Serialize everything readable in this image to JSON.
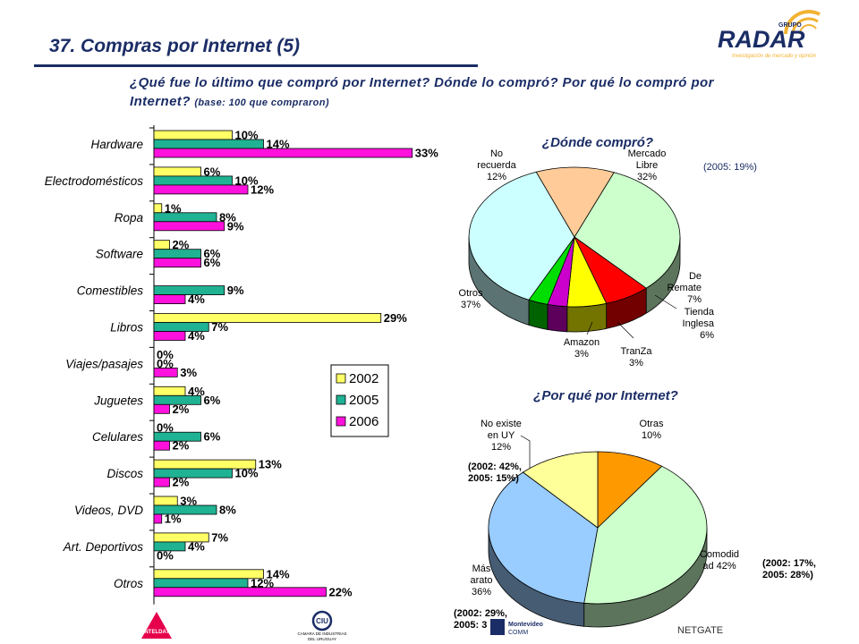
{
  "header": {
    "title": "37. Compras por Internet (5)",
    "question": "¿Qué fue lo último que compró por Internet? Dónde lo compró? Por qué lo compró por Internet?",
    "base": "(base: 100 que compraron)"
  },
  "logos": {
    "radar_group": "GRUPO",
    "radar_name": "RADAR",
    "radar_tagline": "Investigación de mercado y opinión",
    "antel": "ANTELDATA",
    "ciu": "CIU",
    "ciu_sub1": "CAMARA DE INDUSTRIAS",
    "ciu_sub2": "DEL URUGUAY",
    "montevideo1": "Montevideo",
    "montevideo2": "COMM",
    "netgate": "NETGATE"
  },
  "colors": {
    "s2002": "#ffff66",
    "s2005": "#1fb293",
    "s2006": "#ff11dd",
    "title": "#1b2d66"
  },
  "chart_data": [
    {
      "type": "bar",
      "orientation": "horizontal",
      "categories": [
        "Hardware",
        "Electrodomésticos",
        "Ropa",
        "Software",
        "Comestibles",
        "Libros",
        "Viajes/pasajes",
        "Juguetes",
        "Celulares",
        "Discos",
        "Videos, DVD",
        "Art. Deportivos",
        "Otros"
      ],
      "series": [
        {
          "name": "2002",
          "values": [
            10,
            6,
            1,
            2,
            null,
            29,
            0,
            4,
            0,
            13,
            3,
            7,
            14
          ]
        },
        {
          "name": "2005",
          "values": [
            14,
            10,
            8,
            6,
            9,
            7,
            0,
            6,
            6,
            10,
            8,
            4,
            12
          ]
        },
        {
          "name": "2006",
          "values": [
            33,
            12,
            9,
            6,
            4,
            4,
            3,
            2,
            2,
            2,
            1,
            0,
            22
          ]
        }
      ],
      "legend_position": "right"
    },
    {
      "type": "pie",
      "title": "¿Dónde compró?",
      "slices": [
        {
          "label": "Mercado Libre",
          "value": 32,
          "text": "32%",
          "color": "#ccffcc"
        },
        {
          "label": "De Remate",
          "value": 7,
          "text": "7%",
          "color": "#ff0000"
        },
        {
          "label": "Tienda Inglesa",
          "value": 6,
          "text": "6%",
          "color": "#ffff00"
        },
        {
          "label": "TranZa",
          "value": 3,
          "text": "3%",
          "color": "#cc00cc"
        },
        {
          "label": "Amazon",
          "value": 3,
          "text": "3%",
          "color": "#00dd00"
        },
        {
          "label": "Otros",
          "value": 37,
          "text": "37%",
          "color": "#ccffff"
        },
        {
          "label": "No recuerda",
          "value": 12,
          "text": "12%",
          "color": "#ffcc99"
        }
      ],
      "note": "(2005: 19%)"
    },
    {
      "type": "pie",
      "title": "¿Por qué por Internet?",
      "slices": [
        {
          "label": "Otras",
          "value": 10,
          "text": "10%",
          "color": "#ff9900"
        },
        {
          "label": "Comodidad",
          "value": 42,
          "text": "42%",
          "color": "#ccffcc"
        },
        {
          "label": "Más arato",
          "value": 36,
          "text": "36%",
          "color": "#99ccff"
        },
        {
          "label": "No existe en UY",
          "value": 12,
          "text": "12%",
          "color": "#ffff99"
        }
      ],
      "notes": {
        "no_existe": [
          "(2002: 42%,",
          "2005: 15%)"
        ],
        "comodidad": [
          "(2002: 17%,",
          "2005: 28%)"
        ],
        "mas_barato": [
          "(2002: 29%,",
          "2005: 3"
        ]
      }
    }
  ]
}
